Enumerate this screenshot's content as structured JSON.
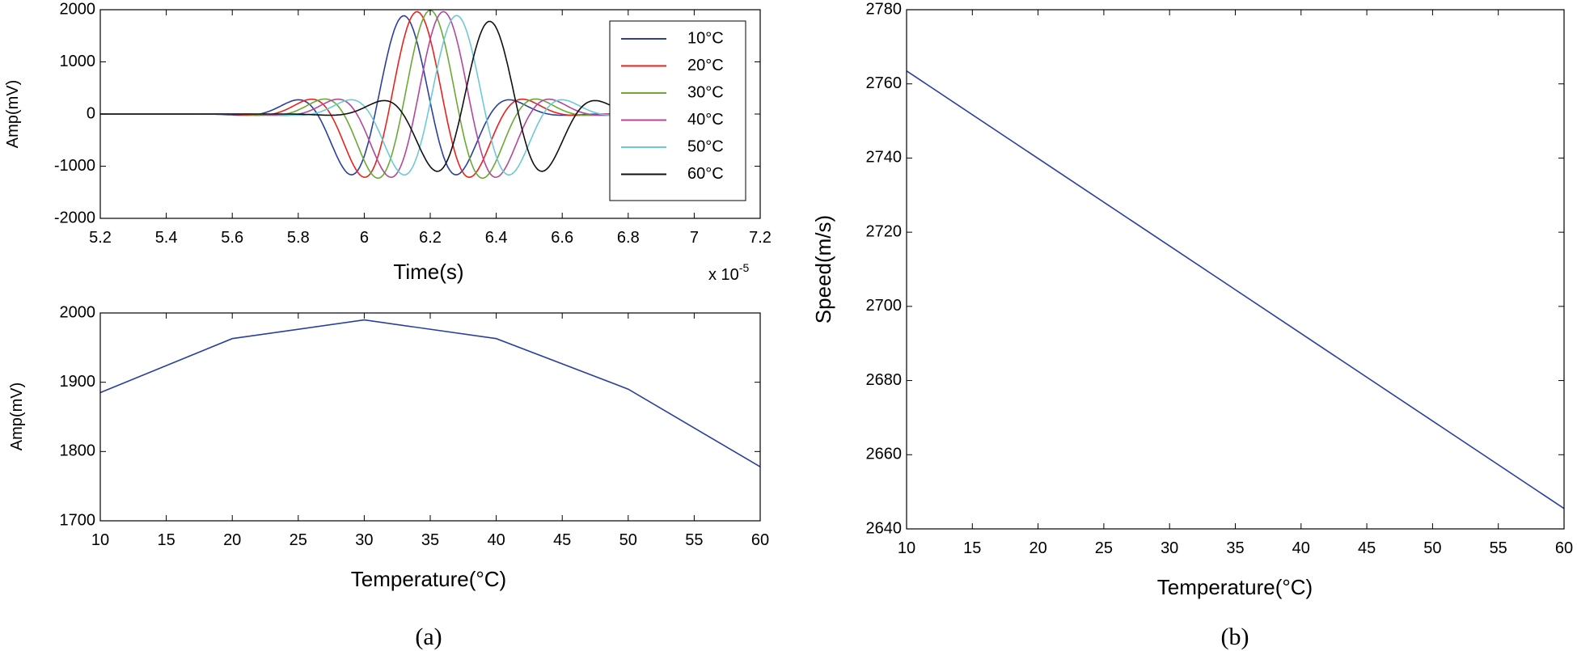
{
  "panel_labels": {
    "a": "(a)",
    "b": "(b)"
  },
  "chart_data": [
    {
      "id": "waveforms",
      "type": "line",
      "title": "",
      "xlabel": "Time(s)",
      "ylabel": "Amp(mV)",
      "x_exponent": "x 10",
      "x_exponent_power": "-5",
      "xlim": [
        5.2,
        7.2
      ],
      "ylim": [
        -2000,
        2000
      ],
      "xticks": [
        5.2,
        5.4,
        5.6,
        5.8,
        6,
        6.2,
        6.4,
        6.6,
        6.8,
        7,
        7.2
      ],
      "yticks": [
        -2000,
        -1000,
        0,
        1000,
        2000
      ],
      "legend_position": "top-right",
      "series": [
        {
          "name": "10°C",
          "color": "#2b3f9e",
          "peak_time_x1e-5": 6.12,
          "peak_amplitude_mV": 1885
        },
        {
          "name": "20°C",
          "color": "#e8231d",
          "peak_time_x1e-5": 6.16,
          "peak_amplitude_mV": 1963
        },
        {
          "name": "30°C",
          "color": "#6aaa34",
          "peak_time_x1e-5": 6.2,
          "peak_amplitude_mV": 1990
        },
        {
          "name": "40°C",
          "color": "#b2479b",
          "peak_time_x1e-5": 6.24,
          "peak_amplitude_mV": 1963
        },
        {
          "name": "50°C",
          "color": "#6ccad3",
          "peak_time_x1e-5": 6.28,
          "peak_amplitude_mV": 1890
        },
        {
          "name": "60°C",
          "color": "#111111",
          "peak_time_x1e-5": 6.38,
          "peak_amplitude_mV": 1778
        }
      ]
    },
    {
      "id": "amp_vs_temp",
      "type": "line",
      "title": "",
      "xlabel": "Temperature(°C)",
      "ylabel": "Amp(mV)",
      "xlim": [
        10,
        60
      ],
      "ylim": [
        1700,
        2000
      ],
      "xticks": [
        10,
        15,
        20,
        25,
        30,
        35,
        40,
        45,
        50,
        55,
        60
      ],
      "yticks": [
        1700,
        1800,
        1900,
        2000
      ],
      "series": [
        {
          "name": "Amp",
          "color": "#2b3f9e",
          "x": [
            10,
            20,
            30,
            40,
            50,
            60
          ],
          "values": [
            1885,
            1963,
            1990,
            1963,
            1890,
            1778
          ]
        }
      ]
    },
    {
      "id": "speed_vs_temp",
      "type": "line",
      "title": "",
      "xlabel": "Temperature(°C)",
      "ylabel": "Speed(m/s)",
      "xlim": [
        10,
        60
      ],
      "ylim": [
        2640,
        2780
      ],
      "xticks": [
        10,
        15,
        20,
        25,
        30,
        35,
        40,
        45,
        50,
        55,
        60
      ],
      "yticks": [
        2640,
        2660,
        2680,
        2700,
        2720,
        2740,
        2760,
        2780
      ],
      "series": [
        {
          "name": "Speed",
          "color": "#2b3f9e",
          "x": [
            10,
            60
          ],
          "values": [
            2763.5,
            2645.5
          ]
        }
      ]
    }
  ]
}
